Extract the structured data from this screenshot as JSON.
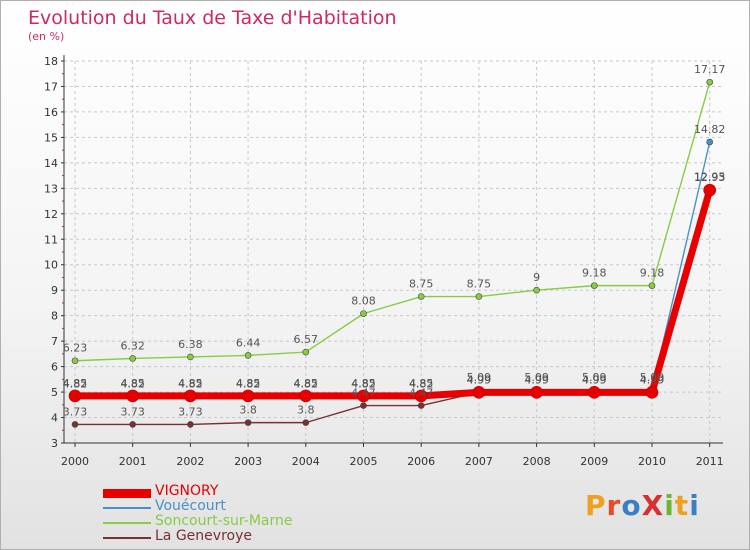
{
  "title": "Evolution du Taux de Taxe d'Habitation",
  "subtitle": "(en %)",
  "logo": {
    "text": "ProXiti",
    "colors": [
      "#f0a020",
      "#e84a2a",
      "#3a7ec8",
      "#d83030",
      "#6bb830",
      "#f0a020",
      "#3a7ec8"
    ]
  },
  "chart_data": {
    "type": "line",
    "title": "Evolution du Taux de Taxe d'Habitation",
    "ylabel": "(en %)",
    "xlabel": "",
    "ylim": [
      3,
      18
    ],
    "yticks": [
      3,
      4,
      5,
      6,
      7,
      8,
      9,
      10,
      11,
      12,
      13,
      14,
      15,
      16,
      17,
      18
    ],
    "grid": "dashed",
    "legend_position": "bottom-left",
    "x": [
      "2000",
      "2001",
      "2002",
      "2003",
      "2004",
      "2005",
      "2006",
      "2007",
      "2008",
      "2009",
      "2010",
      "2011"
    ],
    "series": [
      {
        "name": "VIGNORY",
        "color": "#e80000",
        "values": [
          4.85,
          4.85,
          4.85,
          4.85,
          4.85,
          4.85,
          4.85,
          4.99,
          4.99,
          4.99,
          4.99,
          12.93
        ]
      },
      {
        "name": "Vouécourt",
        "color": "#4a90c8",
        "values": [
          4.82,
          4.82,
          4.82,
          4.82,
          4.82,
          4.82,
          4.82,
          5.09,
          5.09,
          5.09,
          5.09,
          14.82
        ]
      },
      {
        "name": "Soncourt-sur-Marne",
        "color": "#88cc44",
        "values": [
          6.23,
          6.32,
          6.38,
          6.44,
          6.57,
          8.08,
          8.75,
          8.75,
          9,
          9.18,
          9.18,
          17.17
        ]
      },
      {
        "name": "La Genevroye",
        "color": "#7a3030",
        "values": [
          3.73,
          3.73,
          3.73,
          3.8,
          3.8,
          4.47,
          4.47,
          4.99,
          4.99,
          4.99,
          4.99,
          12.95
        ]
      }
    ]
  }
}
